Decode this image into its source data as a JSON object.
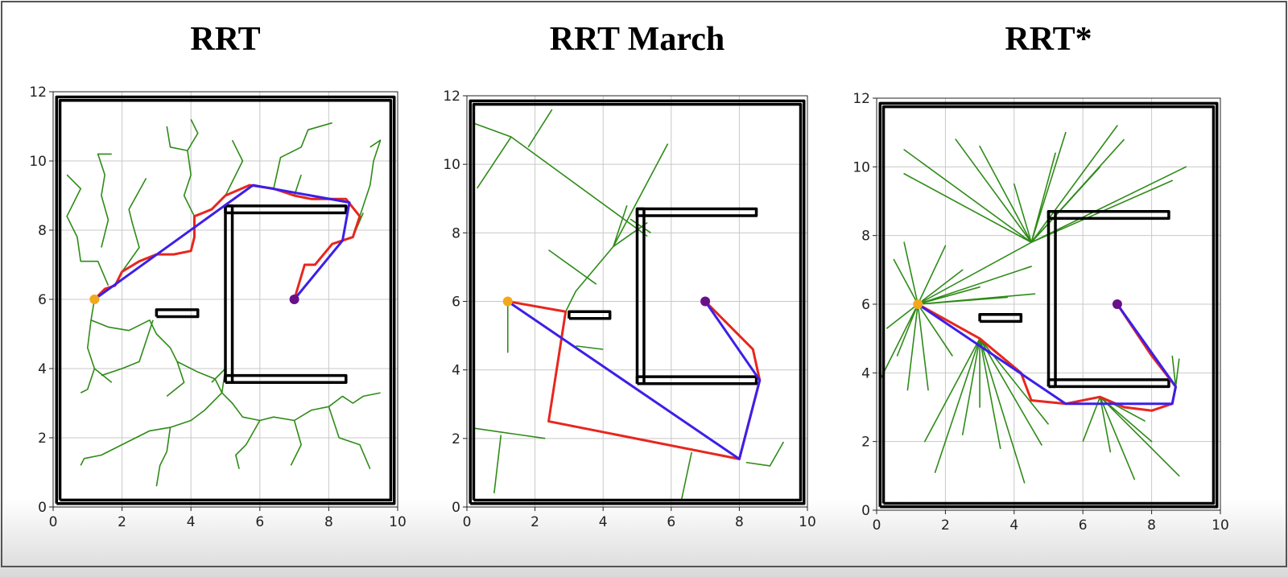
{
  "chart_data": [
    {
      "type": "line",
      "title": "RRT",
      "xlim": [
        0,
        10
      ],
      "ylim": [
        0,
        12
      ],
      "xticks": [
        0,
        2,
        4,
        6,
        8,
        10
      ],
      "yticks": [
        0,
        2,
        4,
        6,
        8,
        10,
        12
      ],
      "grid": true,
      "series": [
        {
          "color": "#2e8b17",
          "width": 1.6,
          "x": [
            1.2,
            1.1,
            1.6,
            2.2,
            2.8,
            3,
            3.4,
            3.6,
            4.2,
            4.7,
            4.9,
            5.2,
            5.5,
            6,
            6.4,
            7,
            7.5,
            8,
            8.4,
            8.7,
            9,
            9.5,
            null,
            1.1,
            1,
            1.2,
            1,
            0.8,
            null,
            1.2,
            1.7,
            null,
            4.9,
            4.4,
            4,
            3.4,
            2.8,
            2.4,
            1.8,
            1.4,
            0.9,
            0.8,
            null,
            3.4,
            3.3,
            3.1,
            3,
            null,
            6,
            5.6,
            5.3,
            5.4,
            null,
            7,
            7.2,
            6.9,
            null,
            8,
            8.3,
            8.9,
            9.2,
            null,
            1.6,
            1.3,
            0.8,
            0.7,
            0.4,
            0.8,
            0.4,
            null,
            2,
            2.5,
            2.3,
            2.2,
            2.7,
            null,
            1.4,
            1.6,
            1.4,
            1.5,
            1.3,
            1.7,
            null,
            4.1,
            3.8,
            4,
            3.9,
            4.2,
            4,
            null,
            3.9,
            3.4,
            3.3,
            null,
            5,
            5.5,
            5.2,
            null,
            6.4,
            6.6,
            7.2,
            7.4,
            8.1,
            null,
            7,
            7.2,
            null,
            8.9,
            9.2,
            9.3,
            9.5,
            9.2,
            null,
            2.9,
            2.5,
            2,
            1.4,
            null,
            3.6,
            3.8,
            3.3,
            null,
            4.9,
            5,
            4.6,
            null,
            8.7,
            9
          ],
          "values": [
            6,
            5.4,
            5.2,
            5.1,
            5.4,
            5,
            4.6,
            4.2,
            3.9,
            3.7,
            3.3,
            3,
            2.6,
            2.5,
            2.6,
            2.5,
            2.8,
            2.9,
            3.2,
            3,
            3.2,
            3.3,
            null,
            5.4,
            4.6,
            4,
            3.4,
            3.3,
            null,
            4,
            3.6,
            null,
            3.3,
            2.8,
            2.5,
            2.3,
            2.2,
            2,
            1.7,
            1.5,
            1.4,
            1.2,
            null,
            2.3,
            1.6,
            1.2,
            0.6,
            null,
            2.5,
            1.8,
            1.5,
            1.1,
            null,
            2.5,
            1.8,
            1.2,
            null,
            2.9,
            2,
            1.8,
            1.1,
            null,
            6.4,
            7.1,
            7.1,
            7.8,
            8.4,
            9.2,
            9.6,
            null,
            6.8,
            7.5,
            8.2,
            8.6,
            9.5,
            null,
            7.5,
            8.3,
            9,
            9.6,
            10.2,
            10.2,
            null,
            8.4,
            9,
            9.6,
            10.3,
            10.8,
            11.2,
            null,
            10.3,
            10.4,
            11,
            null,
            9,
            10,
            10.6,
            null,
            9.2,
            10.1,
            10.4,
            10.9,
            11.1,
            null,
            9,
            9.6,
            null,
            8.4,
            9.3,
            10,
            10.6,
            10.4,
            null,
            5.4,
            4.2,
            4,
            3.8,
            null,
            4.2,
            3.6,
            3.2,
            null,
            3.3,
            4,
            3.6,
            null,
            7.8,
            8.5
          ]
        },
        {
          "color": "#000000",
          "width": 3.5,
          "x": [
            0.1,
            9.9,
            9.9,
            0.1,
            0.1,
            null,
            0.2,
            9.8,
            9.8,
            0.2,
            0.2,
            null,
            5,
            5.2,
            5.2,
            5,
            5,
            null,
            5,
            8.5,
            8.5,
            5,
            5,
            null,
            5,
            8.5,
            8.5,
            5,
            5,
            null,
            3,
            4.2,
            4.2,
            3,
            3
          ],
          "values": [
            0.1,
            0.1,
            11.85,
            11.85,
            0.1,
            null,
            0.2,
            0.2,
            11.75,
            11.75,
            0.2,
            null,
            3.6,
            3.6,
            8.7,
            8.7,
            3.6,
            null,
            8.5,
            8.5,
            8.7,
            8.7,
            8.5,
            null,
            3.6,
            3.6,
            3.8,
            3.8,
            3.6,
            null,
            5.5,
            5.5,
            5.7,
            5.7,
            5.5
          ]
        },
        {
          "color": "#e8261e",
          "width": 3,
          "x": [
            1.2,
            1.5,
            1.8,
            2,
            2.5,
            3,
            3.5,
            4,
            4.1,
            4.1,
            4.6,
            5,
            5.7,
            6.4,
            7,
            7.5,
            8,
            8.5,
            8.9,
            8.7,
            8.1,
            7.6,
            7.3,
            7
          ],
          "values": [
            6,
            6.3,
            6.4,
            6.8,
            7.1,
            7.3,
            7.3,
            7.4,
            7.8,
            8.4,
            8.6,
            9,
            9.3,
            9.2,
            9,
            8.9,
            8.9,
            8.9,
            8.4,
            7.8,
            7.6,
            7,
            7,
            6
          ]
        },
        {
          "color": "#3c1fe8",
          "width": 3,
          "x": [
            1.2,
            5.8,
            8.6,
            8.4,
            7
          ],
          "values": [
            6,
            9.3,
            8.8,
            7.7,
            6
          ]
        },
        {
          "color": "#f2a81c",
          "marker": true,
          "x": [
            1.2
          ],
          "values": [
            6
          ]
        },
        {
          "color": "#6a0f8a",
          "marker": true,
          "x": [
            7
          ],
          "values": [
            6
          ]
        }
      ]
    },
    {
      "type": "line",
      "title": "RRT March",
      "xlim": [
        0,
        10
      ],
      "ylim": [
        0,
        12
      ],
      "xticks": [
        0,
        2,
        4,
        6,
        8,
        10
      ],
      "yticks": [
        0,
        2,
        4,
        6,
        8,
        10,
        12
      ],
      "grid": true,
      "series": [
        {
          "color": "#2e8b17",
          "width": 1.6,
          "x": [
            1.2,
            1.2,
            null,
            2.9,
            3.2,
            4.3,
            5.3,
            null,
            4.3,
            4.7,
            null,
            3.2,
            4,
            null,
            0.2,
            1.3,
            5.3,
            null,
            1.3,
            0.3,
            null,
            1.8,
            2.5,
            null,
            4.3,
            5.9,
            null,
            2.4,
            3.8,
            null,
            4.8,
            5.4,
            null,
            0.2,
            2.3,
            null,
            1,
            0.8,
            null,
            8.2,
            8.9,
            9.3,
            null,
            6.6,
            6.3,
            4.9
          ],
          "values": [
            6,
            4.5,
            null,
            5.7,
            6.3,
            7.6,
            8.3,
            null,
            7.6,
            8.8,
            null,
            4.7,
            4.6,
            null,
            11.2,
            10.8,
            7.9,
            null,
            10.8,
            9.3,
            null,
            10.5,
            11.6,
            null,
            7.6,
            10.6,
            null,
            7.5,
            6.5,
            null,
            8.4,
            8,
            null,
            2.3,
            2,
            null,
            2.1,
            0.4,
            null,
            1.3,
            1.2,
            1.9,
            null,
            1.6,
            0.2,
            0.2
          ]
        },
        {
          "color": "#000000",
          "width": 3.5,
          "x": [
            0.1,
            9.9,
            9.9,
            0.1,
            0.1,
            null,
            0.2,
            9.8,
            9.8,
            0.2,
            0.2,
            null,
            5,
            5.2,
            5.2,
            5,
            5,
            null,
            5,
            8.5,
            8.5,
            5,
            5,
            null,
            5,
            8.5,
            8.5,
            5,
            5,
            null,
            3,
            4.2,
            4.2,
            3,
            3
          ],
          "values": [
            0.1,
            0.1,
            11.85,
            11.85,
            0.1,
            null,
            0.2,
            0.2,
            11.75,
            11.75,
            0.2,
            null,
            3.6,
            3.6,
            8.7,
            8.7,
            3.6,
            null,
            8.5,
            8.5,
            8.7,
            8.7,
            8.5,
            null,
            3.6,
            3.6,
            3.8,
            3.8,
            3.6,
            null,
            5.5,
            5.5,
            5.7,
            5.7,
            5.5
          ]
        },
        {
          "color": "#e8261e",
          "width": 3,
          "x": [
            1.2,
            2.9,
            2.4,
            8,
            8.6,
            8.4,
            7
          ],
          "values": [
            6,
            5.7,
            2.5,
            1.4,
            3.7,
            4.6,
            6
          ]
        },
        {
          "color": "#3c1fe8",
          "width": 3,
          "x": [
            1.2,
            8,
            8.6,
            7
          ],
          "values": [
            6,
            1.4,
            3.7,
            6
          ]
        },
        {
          "color": "#f2a81c",
          "marker": true,
          "x": [
            1.2
          ],
          "values": [
            6
          ]
        },
        {
          "color": "#6a0f8a",
          "marker": true,
          "x": [
            7
          ],
          "values": [
            6
          ]
        }
      ]
    },
    {
      "type": "line",
      "title": "RRT*",
      "xlim": [
        0,
        10
      ],
      "ylim": [
        0,
        12
      ],
      "xticks": [
        0,
        2,
        4,
        6,
        8,
        10
      ],
      "yticks": [
        0,
        2,
        4,
        6,
        8,
        10,
        12
      ],
      "grid": true,
      "series": [
        {
          "color": "#2e8b17",
          "width": 1.6,
          "x": [
            1.2,
            0.1,
            1.2,
            0.6,
            1.2,
            0.3,
            1.2,
            0.5,
            1.2,
            0.8,
            1.2,
            2,
            1.2,
            2.5,
            1.2,
            3,
            1.2,
            3.8,
            1.2,
            4.6,
            1.2,
            4.5,
            1.2,
            2.2,
            1.2,
            1.5,
            1.2,
            0.9,
            1.2,
            4.5,
            null,
            4.5,
            4,
            4.5,
            3,
            4.5,
            2.3,
            4.5,
            0.8,
            4.5,
            0.8,
            4.5,
            5.2,
            4.5,
            5.5,
            4.5,
            6.5,
            4.5,
            9,
            4.5,
            8.6,
            4.5,
            7,
            4.5,
            7.2,
            null,
            3,
            3,
            3,
            2.5,
            3,
            1.7,
            3,
            1.4,
            3,
            3.6,
            3,
            4.3,
            3,
            4.8,
            3,
            5,
            null,
            6.5,
            6.8,
            6.5,
            7.5,
            6.5,
            8,
            6.5,
            8.8,
            6.5,
            7.8,
            6.5,
            6,
            null,
            8.7,
            8.8,
            8.7,
            8.6
          ],
          "values": [
            6,
            3.8,
            6,
            4.5,
            6,
            5.3,
            6,
            7.3,
            6,
            7.8,
            6,
            7.7,
            6,
            7,
            6,
            6.5,
            6,
            6.2,
            6,
            6.3,
            6,
            7.1,
            6,
            4.5,
            6,
            3.5,
            6,
            3.5,
            6,
            7.8,
            null,
            7.8,
            9.5,
            7.8,
            10.6,
            7.8,
            10.8,
            7.8,
            10.5,
            7.8,
            9.8,
            7.8,
            10.4,
            7.8,
            11,
            7.8,
            10,
            7.8,
            10,
            7.8,
            9.6,
            7.8,
            11.2,
            7.8,
            10.8,
            null,
            5,
            3,
            5,
            2.2,
            5,
            1.1,
            5,
            2,
            5,
            1.8,
            5,
            0.8,
            5,
            1.9,
            5,
            2.5,
            null,
            3.3,
            1.7,
            3.3,
            0.9,
            3.3,
            2,
            3.3,
            1,
            3.3,
            2.6,
            3.3,
            2,
            null,
            3.6,
            4.4,
            3.6,
            4.5
          ]
        },
        {
          "color": "#000000",
          "width": 3.5,
          "x": [
            0.1,
            9.9,
            9.9,
            0.1,
            0.1,
            null,
            0.2,
            9.8,
            9.8,
            0.2,
            0.2,
            null,
            5,
            5.2,
            5.2,
            5,
            5,
            null,
            5,
            8.5,
            8.5,
            5,
            5,
            null,
            5,
            8.5,
            8.5,
            5,
            5,
            null,
            3,
            4.2,
            4.2,
            3,
            3
          ],
          "values": [
            0.1,
            0.1,
            11.85,
            11.85,
            0.1,
            null,
            0.2,
            0.2,
            11.75,
            11.75,
            0.2,
            null,
            3.6,
            3.6,
            8.7,
            8.7,
            3.6,
            null,
            8.5,
            8.5,
            8.7,
            8.7,
            8.5,
            null,
            3.6,
            3.6,
            3.8,
            3.8,
            3.6,
            null,
            5.5,
            5.5,
            5.7,
            5.7,
            5.5
          ]
        },
        {
          "color": "#e8261e",
          "width": 3,
          "x": [
            1.2,
            3,
            4.2,
            4.5,
            5.5,
            6.5,
            7.2,
            8,
            8.6,
            8.7,
            8,
            7
          ],
          "values": [
            6,
            5,
            4,
            3.2,
            3.1,
            3.3,
            3,
            2.9,
            3.1,
            3.6,
            4.5,
            6
          ]
        },
        {
          "color": "#3c1fe8",
          "width": 3,
          "x": [
            1.2,
            5.5,
            8.6,
            8.7,
            7
          ],
          "values": [
            6,
            3.1,
            3.1,
            3.6,
            6
          ]
        },
        {
          "color": "#f2a81c",
          "marker": true,
          "x": [
            1.2
          ],
          "values": [
            6
          ]
        },
        {
          "color": "#6a0f8a",
          "marker": true,
          "x": [
            7
          ],
          "values": [
            6
          ]
        }
      ]
    }
  ]
}
